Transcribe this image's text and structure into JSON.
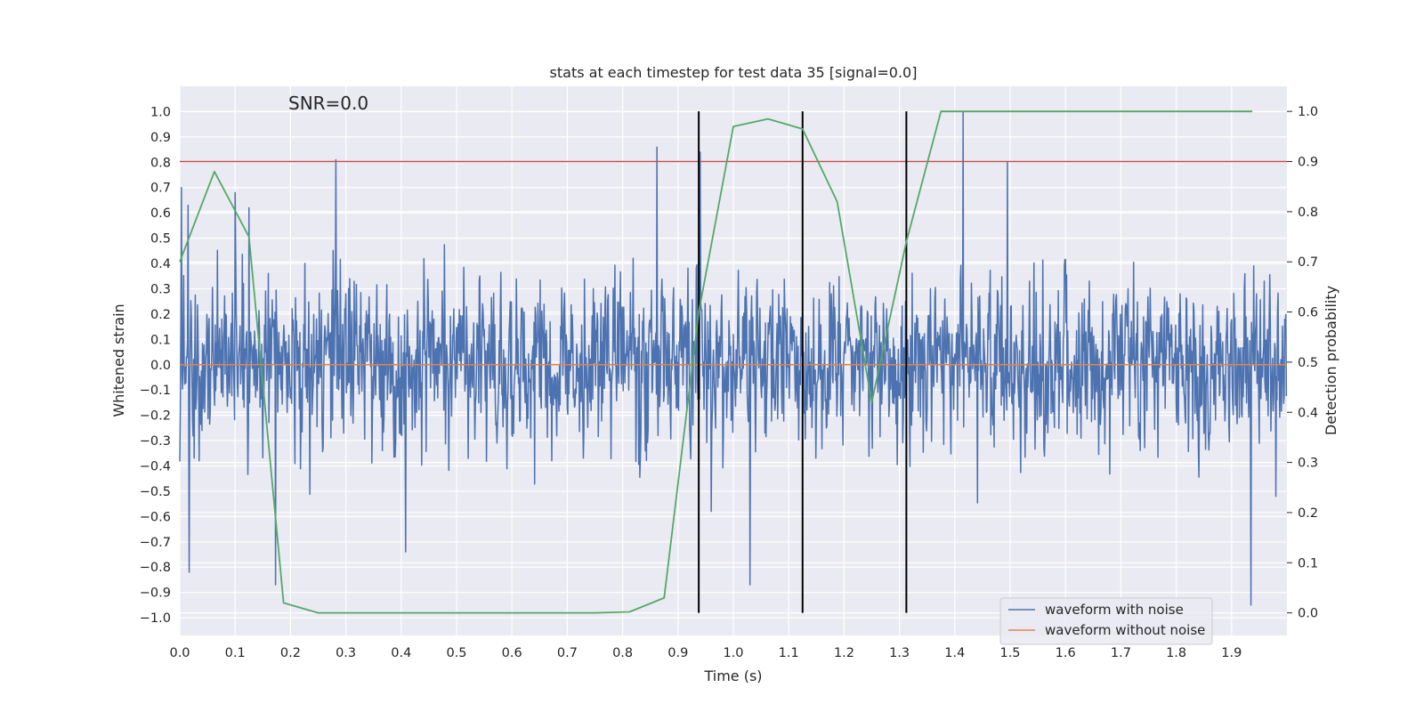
{
  "chart_data": {
    "type": "line",
    "title": "stats at each timestep for test data 35 [signal=0.0]",
    "annotation": "SNR=0.0",
    "xlabel": "Time (s)",
    "ylabel_left": "Whitened strain",
    "ylabel_right": "Detection probability",
    "xlim": [
      0.0,
      2.0
    ],
    "ylim_left": [
      -1.07,
      1.1
    ],
    "ylim_right": [
      -0.045,
      1.05
    ],
    "xticks": [
      0.0,
      0.1,
      0.2,
      0.3,
      0.4,
      0.5,
      0.6,
      0.7,
      0.8,
      0.9,
      1.0,
      1.1,
      1.2,
      1.3,
      1.4,
      1.5,
      1.6,
      1.7,
      1.8,
      1.9
    ],
    "xtick_labels": [
      "0.0",
      "0.1",
      "0.2",
      "0.3",
      "0.4",
      "0.5",
      "0.6",
      "0.7",
      "0.8",
      "0.9",
      "1.0",
      "1.1",
      "1.2",
      "1.3",
      "1.4",
      "1.5",
      "1.6",
      "1.7",
      "1.8",
      "1.9"
    ],
    "yticks_left": [
      1.0,
      0.9,
      0.8,
      0.7,
      0.6,
      0.5,
      0.4,
      0.3,
      0.2,
      0.1,
      0.0,
      -0.1,
      -0.2,
      -0.3,
      -0.4,
      -0.5,
      -0.6,
      -0.7,
      -0.8,
      -0.9,
      -1.0
    ],
    "ytick_labels_left": [
      "1.0",
      "0.9",
      "0.8",
      "0.7",
      "0.6",
      "0.5",
      "0.4",
      "0.3",
      "0.2",
      "0.1",
      "0.0",
      "−0.1",
      "−0.2",
      "−0.3",
      "−0.4",
      "−0.5",
      "−0.6",
      "−0.7",
      "−0.8",
      "−0.9",
      "−1.0"
    ],
    "yticks_right": [
      1.0,
      0.9,
      0.8,
      0.7,
      0.6,
      0.5,
      0.4,
      0.3,
      0.2,
      0.1,
      0.0
    ],
    "ytick_labels_right": [
      "1.0",
      "0.9",
      "0.8",
      "0.7",
      "0.6",
      "0.5",
      "0.4",
      "0.3",
      "0.2",
      "0.1",
      "0.0"
    ],
    "noise_waveform": {
      "name": "waveform with noise",
      "color": "#4c72b0",
      "n_samples": 2000,
      "seed": 35,
      "approx_range": [
        -0.95,
        1.0
      ],
      "notable_peaks": [
        {
          "x": 0.003,
          "y": 0.7
        },
        {
          "x": 0.015,
          "y": 0.63
        },
        {
          "x": 0.017,
          "y": -0.82
        },
        {
          "x": 0.1,
          "y": 0.68
        },
        {
          "x": 0.125,
          "y": 0.62
        },
        {
          "x": 0.173,
          "y": -0.87
        },
        {
          "x": 0.282,
          "y": 0.81
        },
        {
          "x": 0.408,
          "y": -0.74
        },
        {
          "x": 0.862,
          "y": 0.86
        },
        {
          "x": 0.94,
          "y": 0.84
        },
        {
          "x": 0.96,
          "y": -0.58
        },
        {
          "x": 1.03,
          "y": -0.87
        },
        {
          "x": 1.415,
          "y": 1.0
        },
        {
          "x": 1.495,
          "y": 0.8
        },
        {
          "x": 1.935,
          "y": -0.95
        }
      ]
    },
    "clean_waveform": {
      "name": "waveform without noise",
      "color": "#dd8452",
      "value": 0.0
    },
    "detection_probability": {
      "color": "#55a868",
      "x": [
        0.0,
        0.0625,
        0.125,
        0.1875,
        0.25,
        0.3125,
        0.375,
        0.4375,
        0.5,
        0.5625,
        0.625,
        0.6875,
        0.75,
        0.8125,
        0.875,
        0.9375,
        1.0,
        1.0625,
        1.125,
        1.1875,
        1.25,
        1.3125,
        1.375,
        1.4375,
        1.5,
        1.5625,
        1.625,
        1.6875,
        1.75,
        1.8125,
        1.875,
        1.9375
      ],
      "y": [
        0.7,
        0.88,
        0.75,
        0.02,
        0.0,
        0.0,
        0.0,
        0.0,
        0.0,
        0.0,
        0.0,
        0.0,
        0.0,
        0.002,
        0.03,
        0.6,
        0.97,
        0.985,
        0.965,
        0.82,
        0.42,
        0.74,
        1.0,
        1.0,
        1.0,
        1.0,
        1.0,
        1.0,
        1.0,
        1.0,
        1.0,
        1.0
      ]
    },
    "threshold": {
      "value": 0.9,
      "axis": "right",
      "color": "#c44e52"
    },
    "event_lines": {
      "x": [
        0.9375,
        1.125,
        1.3125
      ],
      "y_range": [
        0.0,
        1.0
      ],
      "axis": "right",
      "color": "#000000"
    },
    "legend": {
      "placement": "lower-right",
      "entries": [
        {
          "label": "waveform with noise",
          "color": "#4c72b0"
        },
        {
          "label": "waveform without noise",
          "color": "#dd8452"
        }
      ]
    }
  }
}
